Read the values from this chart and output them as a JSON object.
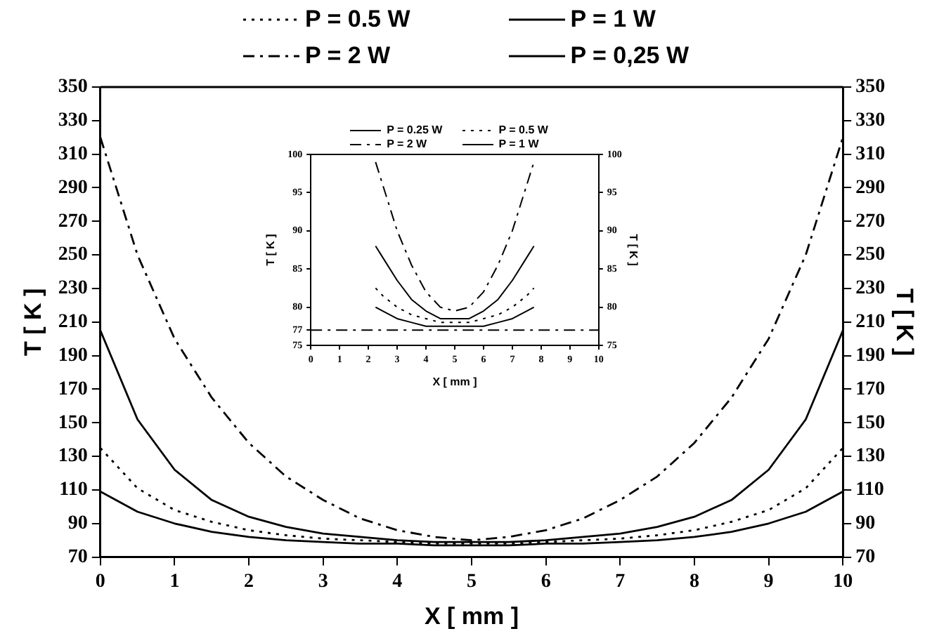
{
  "chart_data": [
    {
      "type": "line",
      "xlabel": "X [ mm ]",
      "ylabel": "T [ K ]",
      "y2label": "T [ K ]",
      "x": [
        0,
        0.5,
        1,
        1.5,
        2,
        2.5,
        3,
        3.5,
        4,
        4.5,
        5,
        5.5,
        6,
        6.5,
        7,
        7.5,
        8,
        8.5,
        9,
        9.5,
        10
      ],
      "xlim": [
        0,
        10
      ],
      "xticks": [
        0,
        1,
        2,
        3,
        4,
        5,
        6,
        7,
        8,
        9,
        10
      ],
      "ylim": [
        70,
        350
      ],
      "yticks": [
        70,
        90,
        110,
        130,
        150,
        170,
        190,
        210,
        230,
        250,
        270,
        290,
        310,
        330,
        350
      ],
      "y2lim": [
        70,
        350
      ],
      "y2ticks": [
        70,
        90,
        110,
        130,
        150,
        170,
        190,
        210,
        230,
        250,
        270,
        290,
        310,
        330,
        350
      ],
      "legend": "top",
      "marker": "none",
      "series": [
        {
          "name": "P = 0.5 W",
          "color": "#000000",
          "line_style": "dotted",
          "values": [
            135,
            111,
            98,
            91,
            86,
            83,
            81,
            80,
            79,
            78,
            78,
            78,
            79,
            80,
            81,
            83,
            86,
            91,
            98,
            111,
            135
          ]
        },
        {
          "name": "P = 1 W",
          "color": "#000000",
          "line_style": "solid",
          "values": [
            205,
            152,
            122,
            104,
            94,
            88,
            84,
            82,
            80,
            79,
            79,
            79,
            80,
            82,
            84,
            88,
            94,
            104,
            122,
            152,
            205
          ]
        },
        {
          "name": "P = 2 W",
          "color": "#000000",
          "line_style": "dashed",
          "values": [
            320,
            250,
            200,
            165,
            138,
            118,
            104,
            93,
            86,
            82,
            80,
            82,
            86,
            93,
            104,
            118,
            138,
            165,
            200,
            250,
            320
          ]
        },
        {
          "name": "P = 0,25 W",
          "color": "#000000",
          "line_style": "solid",
          "values": [
            109,
            97,
            90,
            85,
            82,
            80,
            79,
            78,
            78,
            77,
            77,
            77,
            78,
            78,
            79,
            80,
            82,
            85,
            90,
            97,
            109
          ]
        }
      ]
    },
    {
      "type": "line",
      "xlabel": "X [ mm ]",
      "ylabel": "T [ K ]",
      "y2label": "T [ K ]",
      "x": [
        2.25,
        2.5,
        3,
        3.5,
        4,
        4.5,
        5,
        5.5,
        6,
        6.5,
        7,
        7.5,
        7.75
      ],
      "xlim": [
        0,
        10
      ],
      "xticks": [
        0,
        1,
        2,
        3,
        4,
        5,
        6,
        7,
        8,
        9,
        10
      ],
      "ylim": [
        75,
        100
      ],
      "yticks": [
        75,
        77,
        80,
        85,
        90,
        95,
        100
      ],
      "y2lim": [
        75,
        100
      ],
      "y2ticks": [
        75,
        80,
        85,
        90,
        95,
        100
      ],
      "legend": "top",
      "marker": "none",
      "ref_lines": [
        {
          "axis": "y",
          "value": 77,
          "line_style": "dashed"
        }
      ],
      "series": [
        {
          "name": "P = 0.25 W",
          "color": "#000000",
          "line_style": "solid",
          "values": [
            80,
            79.5,
            78.5,
            78,
            77.5,
            77.5,
            77.5,
            77.5,
            77.5,
            78,
            78.5,
            79.5,
            80
          ]
        },
        {
          "name": "P = 0.5 W",
          "color": "#000000",
          "line_style": "dotted",
          "values": [
            82.5,
            81.5,
            80,
            79,
            78.5,
            78,
            78,
            78,
            78.5,
            79,
            80,
            81.5,
            82.5
          ]
        },
        {
          "name": "P = 2 W",
          "color": "#000000",
          "line_style": "dashed",
          "values": [
            99,
            96,
            90,
            85.5,
            82,
            80,
            79.5,
            80,
            82,
            85.5,
            90,
            96,
            99
          ]
        },
        {
          "name": "P = 1 W",
          "color": "#000000",
          "line_style": "solid",
          "values": [
            88,
            86.5,
            83.5,
            81,
            79.5,
            78.5,
            78.5,
            78.5,
            79.5,
            81,
            83.5,
            86.5,
            88
          ]
        }
      ]
    }
  ]
}
